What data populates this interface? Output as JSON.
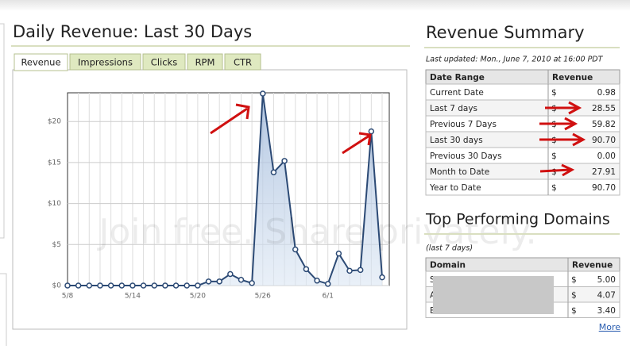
{
  "revenue_panel": {
    "title": "Daily Revenue: Last 30 Days",
    "tabs": [
      "Revenue",
      "Impressions",
      "Clicks",
      "RPM",
      "CTR"
    ],
    "chart_data": {
      "type": "line",
      "categories": [
        "5/8",
        null,
        null,
        null,
        null,
        null,
        "5/14",
        null,
        null,
        null,
        null,
        null,
        "5/20",
        null,
        null,
        null,
        null,
        null,
        "5/26",
        null,
        null,
        null,
        null,
        null,
        "6/1",
        null,
        null,
        null,
        null,
        null
      ],
      "values": [
        0,
        0,
        0,
        0,
        0,
        0,
        0,
        0,
        0,
        0,
        0,
        0,
        0,
        0.5,
        0.5,
        1.4,
        0.7,
        0.3,
        23.4,
        13.8,
        15.2,
        4.4,
        2.0,
        0.6,
        0.2,
        3.9,
        1.8,
        1.9,
        18.8,
        1.0
      ],
      "color": "#2c4a75",
      "ylim": [
        0,
        23.5
      ],
      "yticks": [
        {
          "value": 0,
          "label": "$0"
        },
        {
          "value": 5,
          "label": "$5"
        },
        {
          "value": 10,
          "label": "$10"
        },
        {
          "value": 15,
          "label": "$15"
        },
        {
          "value": 20,
          "label": "$20"
        }
      ],
      "grid": true
    }
  },
  "watermark": "Join free. Share privately.",
  "revenue_summary": {
    "title": "Revenue Summary",
    "last_updated": "Last updated: Mon., June 7, 2010 at 16:00 PDT",
    "columns": [
      "Date Range",
      "Revenue"
    ],
    "currency": "$",
    "rows": [
      [
        "Current Date",
        "0.98"
      ],
      [
        "Last 7 days",
        "28.55"
      ],
      [
        "Previous 7 Days",
        "59.82"
      ],
      [
        "Last 30 days",
        "90.70"
      ],
      [
        "Previous 30 Days",
        "0.00"
      ],
      [
        "Month to Date",
        "27.91"
      ],
      [
        "Year to Date",
        "90.70"
      ]
    ]
  },
  "top_domains": {
    "title": "Top Performing Domains",
    "subtitle": "(last 7 days)",
    "columns": [
      "Domain",
      "Revenue"
    ],
    "currency": "$",
    "rows": [
      [
        "S",
        "5.00"
      ],
      [
        "A",
        "4.07"
      ],
      [
        "Bu",
        "3.40"
      ]
    ],
    "more": "More"
  }
}
